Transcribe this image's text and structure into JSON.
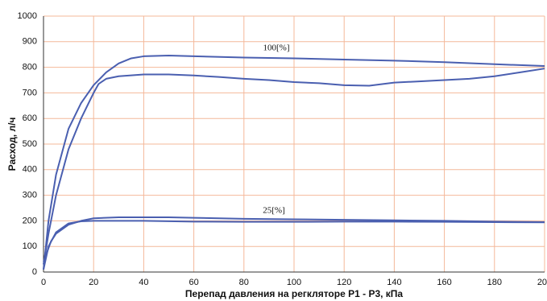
{
  "chart_data": {
    "type": "line",
    "xlabel": "Перепад давления на регкляторе Р1 - Р3, кПа",
    "ylabel": "Расход, л/ч",
    "annotations": [
      "100[%]",
      "25[%]"
    ],
    "xlim": [
      0,
      200
    ],
    "xticks": [
      0,
      20,
      40,
      60,
      80,
      100,
      120,
      140,
      160,
      180,
      200
    ],
    "ylim": [
      0,
      1000
    ],
    "yticks": [
      0,
      100,
      200,
      300,
      400,
      500,
      600,
      700,
      800,
      900,
      1000
    ],
    "grid": true,
    "grid_color": "#f4b89a",
    "series": [
      {
        "color": "#4a5fb0",
        "x": [
          0,
          2,
          5,
          10,
          15,
          20,
          25,
          30,
          35,
          40,
          50,
          60,
          80,
          100,
          120,
          140,
          160,
          180,
          200
        ],
        "values": [
          10,
          200,
          380,
          560,
          660,
          730,
          780,
          815,
          835,
          843,
          846,
          843,
          838,
          835,
          830,
          826,
          820,
          812,
          805
        ]
      },
      {
        "color": "#4a5fb0",
        "x": [
          0,
          2,
          5,
          10,
          15,
          20,
          22,
          25,
          30,
          40,
          50,
          60,
          70,
          80,
          90,
          100,
          110,
          120,
          130,
          140,
          150,
          160,
          170,
          180,
          190,
          200
        ],
        "values": [
          30,
          150,
          300,
          480,
          600,
          700,
          735,
          755,
          765,
          772,
          772,
          768,
          762,
          755,
          750,
          742,
          738,
          730,
          728,
          740,
          745,
          750,
          755,
          765,
          780,
          795
        ]
      },
      {
        "color": "#4a5fb0",
        "x": [
          0,
          3,
          5,
          10,
          15,
          20,
          30,
          50,
          60,
          80,
          100,
          120,
          140,
          160,
          180,
          200
        ],
        "values": [
          40,
          120,
          150,
          185,
          200,
          210,
          214,
          214,
          212,
          208,
          206,
          204,
          202,
          200,
          197,
          195
        ]
      },
      {
        "color": "#4a5fb0",
        "x": [
          0,
          2,
          5,
          10,
          15,
          20,
          40,
          60,
          80,
          100,
          120,
          140,
          160,
          180,
          200
        ],
        "values": [
          10,
          100,
          155,
          190,
          198,
          200,
          200,
          197,
          196,
          196,
          197,
          197,
          196,
          195,
          194
        ]
      }
    ]
  }
}
